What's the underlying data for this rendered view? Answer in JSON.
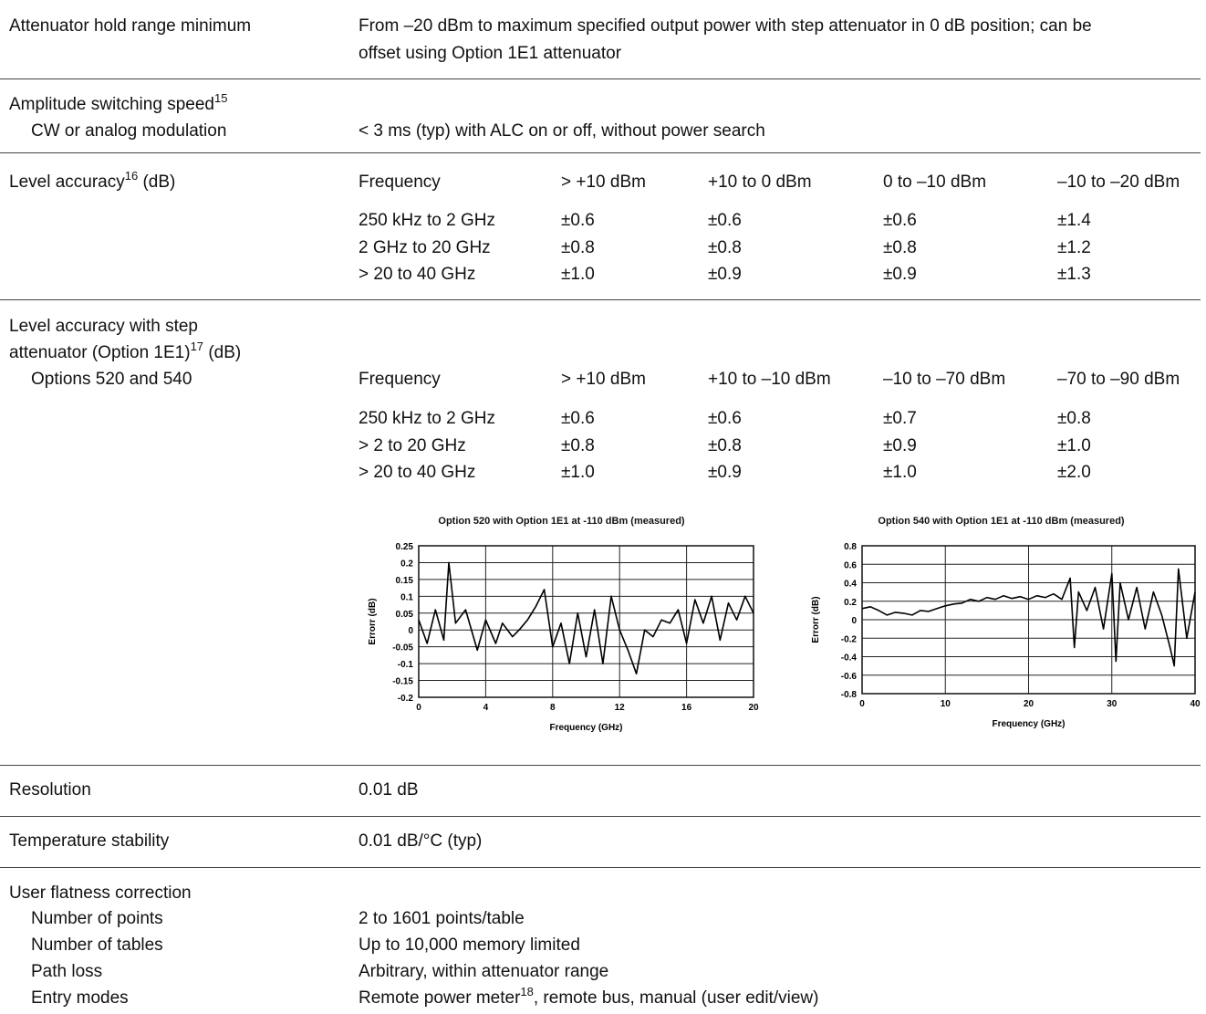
{
  "rows": {
    "attenuator_hold": {
      "label": "Attenuator hold range minimum",
      "line1": "From –20 dBm to maximum specified output power with step attenuator in 0 dB position; can be",
      "line2": "offset using Option 1E1 attenuator"
    },
    "switching": {
      "label": "Amplitude switching speed",
      "footnote": "15",
      "sub_label": "CW or analog modulation",
      "value": "< 3 ms (typ) with ALC on or off, without power search"
    },
    "level_accuracy": {
      "label": "Level accuracy",
      "footnote": "16",
      "unit": " (dB)",
      "headers": [
        "Frequency",
        "> +10 dBm",
        "+10 to 0 dBm",
        "0 to –10 dBm",
        "–10 to –20 dBm"
      ],
      "rows": [
        [
          "250 kHz to 2 GHz",
          "±0.6",
          "±0.6",
          "±0.6",
          "±1.4"
        ],
        [
          "2 GHz to 20 GHz",
          "±0.8",
          "±0.8",
          "±0.8",
          "±1.2"
        ],
        [
          "> 20 to 40 GHz",
          "±1.0",
          "±0.9",
          "±0.9",
          "±1.3"
        ]
      ]
    },
    "level_accuracy_step": {
      "label_line1": "Level accuracy with step",
      "label_line2": "attenuator (Option 1E1)",
      "footnote": "17",
      "unit": " (dB)",
      "sub_label": "Options 520 and 540",
      "headers": [
        "Frequency",
        "> +10 dBm",
        "+10 to –10 dBm",
        "–10 to –70 dBm",
        "–70 to –90 dBm"
      ],
      "rows": [
        [
          "250 kHz to 2 GHz",
          "±0.6",
          "±0.6",
          "±0.7",
          "±0.8"
        ],
        [
          "> 2 to 20 GHz",
          "±0.8",
          "±0.8",
          "±0.9",
          "±1.0"
        ],
        [
          "> 20 to 40 GHz",
          "±1.0",
          "±0.9",
          "±1.0",
          "±2.0"
        ]
      ]
    },
    "resolution": {
      "label": "Resolution",
      "value": "0.01 dB"
    },
    "temperature": {
      "label": "Temperature stability",
      "value": "0.01 dB/°C (typ)"
    },
    "user_flatness": {
      "label": "User flatness correction",
      "items": [
        {
          "label": "Number of points",
          "value": "2 to 1601 points/table"
        },
        {
          "label": "Number of tables",
          "value": "Up to 10,000 memory limited"
        },
        {
          "label": "Path loss",
          "value": "Arbitrary, within attenuator range"
        },
        {
          "label": "Entry modes",
          "value_pre": "Remote power meter",
          "footnote": "18",
          "value_post": ", remote bus, manual (user edit/view)"
        }
      ]
    }
  },
  "chart_data": [
    {
      "type": "line",
      "title": "Option 520 with Option 1E1 at -110 dBm (measured)",
      "xlabel": "Frequency (GHz)",
      "ylabel": "Errorr (dB)",
      "xlim": [
        0,
        20
      ],
      "ylim": [
        -0.2,
        0.25
      ],
      "xticks": [
        "0",
        "4",
        "8",
        "12",
        "16",
        "20"
      ],
      "yticks": [
        "0.25",
        "0.2",
        "0.15",
        "0.1",
        "0.05",
        "0",
        "-0.05",
        "-0.1",
        "-0.15",
        "-0.2"
      ],
      "grid": true,
      "series": [
        {
          "x": [
            0,
            0.5,
            1,
            1.5,
            1.8,
            2.2,
            2.8,
            3.5,
            4,
            4.6,
            5,
            5.6,
            6,
            6.5,
            7,
            7.5,
            8,
            8.5,
            9,
            9.5,
            10,
            10.5,
            11,
            11.5,
            12,
            12.5,
            13,
            13.5,
            14,
            14.5,
            15,
            15.5,
            16,
            16.5,
            17,
            17.5,
            18,
            18.5,
            19,
            19.5,
            20
          ],
          "y": [
            0.03,
            -0.04,
            0.06,
            -0.03,
            0.2,
            0.02,
            0.06,
            -0.06,
            0.03,
            -0.04,
            0.02,
            -0.02,
            0.0,
            0.03,
            0.07,
            0.12,
            -0.05,
            0.02,
            -0.1,
            0.05,
            -0.08,
            0.06,
            -0.1,
            0.1,
            0.0,
            -0.06,
            -0.13,
            0.0,
            -0.02,
            0.03,
            0.02,
            0.06,
            -0.04,
            0.09,
            0.02,
            0.1,
            -0.03,
            0.08,
            0.03,
            0.1,
            0.05
          ]
        }
      ]
    },
    {
      "type": "line",
      "title": "Option 540 with Option 1E1 at -110 dBm (measured)",
      "xlabel": "Frequency (GHz)",
      "ylabel": "Errorr (dB)",
      "xlim": [
        0,
        40
      ],
      "ylim": [
        -0.8,
        0.8
      ],
      "xticks": [
        "0",
        "10",
        "20",
        "30",
        "40"
      ],
      "yticks": [
        "0.8",
        "0.6",
        "0.4",
        "0.2",
        "0",
        "-0.2",
        "-0.4",
        "-0.6",
        "-0.8"
      ],
      "grid": true,
      "series": [
        {
          "x": [
            0,
            1,
            2,
            3,
            4,
            5,
            6,
            7,
            8,
            9,
            10,
            11,
            12,
            13,
            14,
            15,
            16,
            17,
            18,
            19,
            20,
            21,
            22,
            23,
            24,
            25,
            25.5,
            26,
            27,
            28,
            29,
            30,
            30.5,
            31,
            32,
            33,
            34,
            35,
            36,
            37,
            37.5,
            38,
            39,
            40
          ],
          "y": [
            0.12,
            0.14,
            0.1,
            0.05,
            0.08,
            0.07,
            0.05,
            0.1,
            0.09,
            0.12,
            0.15,
            0.17,
            0.18,
            0.22,
            0.2,
            0.24,
            0.22,
            0.26,
            0.23,
            0.25,
            0.22,
            0.26,
            0.24,
            0.28,
            0.22,
            0.45,
            -0.3,
            0.3,
            0.1,
            0.35,
            -0.1,
            0.5,
            -0.45,
            0.4,
            0.0,
            0.35,
            -0.1,
            0.3,
            0.05,
            -0.3,
            -0.5,
            0.55,
            -0.2,
            0.3
          ]
        }
      ]
    }
  ]
}
